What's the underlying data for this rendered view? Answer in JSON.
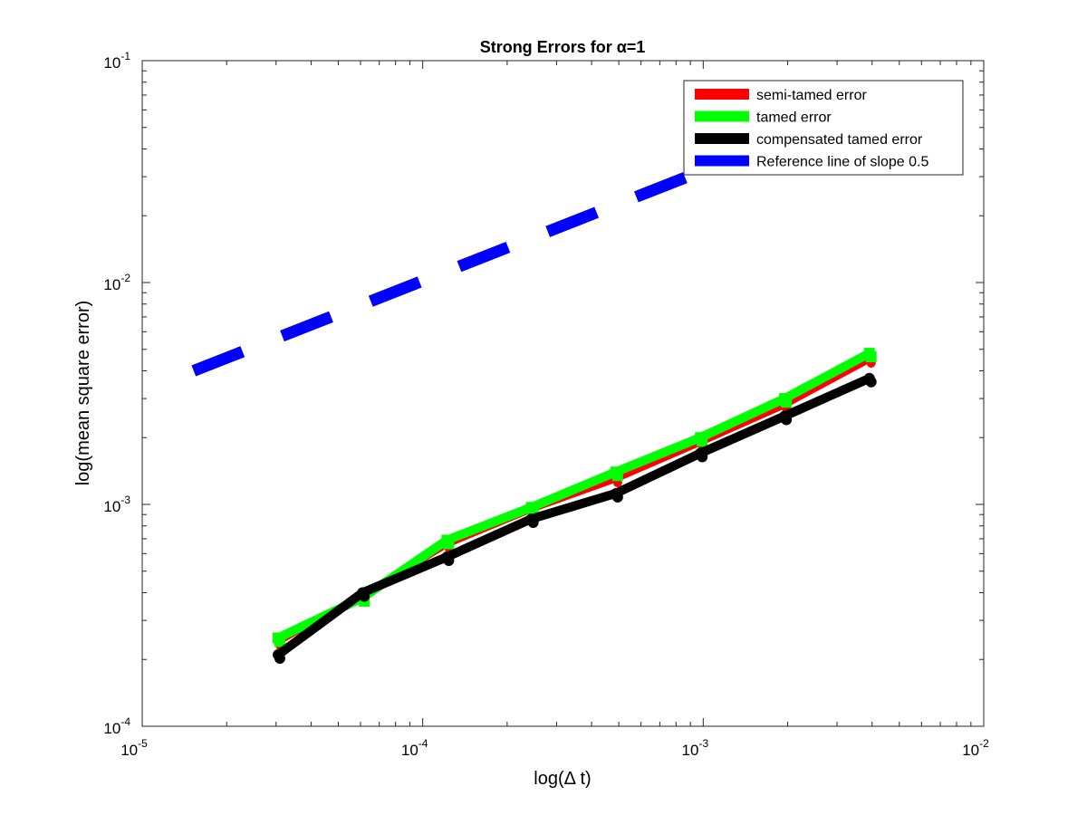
{
  "chart_data": {
    "type": "line",
    "title": "Strong Errors for α=1",
    "xlabel": "log(Δ t)",
    "ylabel": "log(mean square error)",
    "xscale": "log",
    "yscale": "log",
    "xlim": [
      1e-05,
      0.01
    ],
    "ylim": [
      0.0001,
      0.1
    ],
    "xticks": [
      {
        "value": 1e-05,
        "base": "10",
        "exp": "-5"
      },
      {
        "value": 0.0001,
        "base": "10",
        "exp": "-4"
      },
      {
        "value": 0.001,
        "base": "10",
        "exp": "-3"
      },
      {
        "value": 0.01,
        "base": "10",
        "exp": "-2"
      }
    ],
    "yticks": [
      {
        "value": 0.0001,
        "base": "10",
        "exp": "-4"
      },
      {
        "value": 0.001,
        "base": "10",
        "exp": "-3"
      },
      {
        "value": 0.01,
        "base": "10",
        "exp": "-2"
      },
      {
        "value": 0.1,
        "base": "10",
        "exp": "-1"
      }
    ],
    "grid": false,
    "legend_position": "top-right",
    "series": [
      {
        "name": "semi-tamed error",
        "color": "#ff0000",
        "marker": "asterisk",
        "style": "solid",
        "x": [
          3.05e-05,
          6.1e-05,
          0.000122,
          0.000244,
          0.000488,
          0.000977,
          0.00195,
          0.00391
        ],
        "y": [
          0.00024,
          0.00039,
          0.00066,
          0.00095,
          0.0013,
          0.0019,
          0.0028,
          0.0045
        ]
      },
      {
        "name": "tamed error",
        "color": "#00ff00",
        "marker": "square",
        "style": "solid",
        "x": [
          3.05e-05,
          6.1e-05,
          0.000122,
          0.000244,
          0.000488,
          0.000977,
          0.00195,
          0.00391
        ],
        "y": [
          0.00025,
          0.00038,
          0.00069,
          0.00097,
          0.0014,
          0.002,
          0.003,
          0.0048
        ]
      },
      {
        "name": "compensated tamed error",
        "color": "#000000",
        "marker": "dot",
        "style": "solid",
        "x": [
          3.05e-05,
          6.1e-05,
          0.000122,
          0.000244,
          0.000488,
          0.000977,
          0.00195,
          0.00391
        ],
        "y": [
          0.00021,
          0.0004,
          0.00058,
          0.00086,
          0.00112,
          0.0017,
          0.0025,
          0.0037
        ]
      },
      {
        "name": "Reference line of slope 0.5",
        "color": "#0000ff",
        "marker": "none",
        "style": "dashed",
        "x": [
          1.526e-05,
          0.00391
        ],
        "y": [
          0.004,
          0.063
        ]
      }
    ]
  }
}
